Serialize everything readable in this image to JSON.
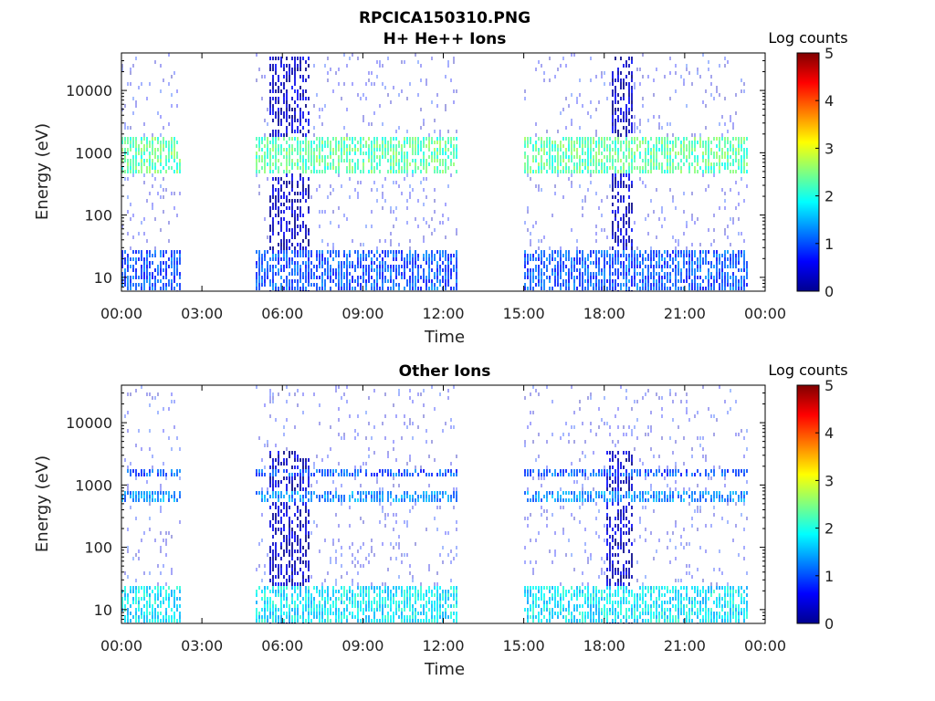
{
  "figure": {
    "title": "RPCICA150310.PNG"
  },
  "chart_data": [
    {
      "type": "heatmap",
      "title": "H+ He++ Ions",
      "xlabel": "Time",
      "ylabel": "Energy (eV)",
      "x_ticks": [
        "00:00",
        "03:00",
        "06:00",
        "09:00",
        "12:00",
        "15:00",
        "18:00",
        "21:00",
        "00:00"
      ],
      "x_range_hours": [
        0,
        24
      ],
      "y_ticks": [
        "10",
        "100",
        "1000",
        "10000"
      ],
      "y_scale": "log",
      "y_range": [
        6,
        40000
      ],
      "colorbar": {
        "label": "Log counts",
        "ticks": [
          "0",
          "1",
          "2",
          "3",
          "4",
          "5"
        ],
        "range": [
          0,
          5
        ],
        "colormap": "jet"
      },
      "data_intervals_hours": [
        [
          0,
          2.2
        ],
        [
          5.0,
          12.5
        ],
        [
          15.0,
          23.3
        ]
      ],
      "features": [
        {
          "label": "high-count bands",
          "energy_eV": [
            7,
            28
          ],
          "log_counts": 1.0
        },
        {
          "label": "~1 keV band",
          "energy_eV": [
            500,
            2000
          ],
          "log_counts": 2.3
        },
        {
          "label": "burst",
          "time_hours": [
            5.5,
            7.0
          ],
          "energy_eV": [
            6,
            40000
          ],
          "log_counts": 0.3
        },
        {
          "label": "burst",
          "time_hours": [
            18.2,
            19.0
          ],
          "energy_eV": [
            6,
            40000
          ],
          "log_counts": 0.3
        }
      ]
    },
    {
      "type": "heatmap",
      "title": "Other Ions",
      "xlabel": "Time",
      "ylabel": "Energy (eV)",
      "x_ticks": [
        "00:00",
        "03:00",
        "06:00",
        "09:00",
        "12:00",
        "15:00",
        "18:00",
        "21:00",
        "00:00"
      ],
      "x_range_hours": [
        0,
        24
      ],
      "y_ticks": [
        "10",
        "100",
        "1000",
        "10000"
      ],
      "y_scale": "log",
      "y_range": [
        6,
        40000
      ],
      "colorbar": {
        "label": "Log counts",
        "ticks": [
          "0",
          "1",
          "2",
          "3",
          "4",
          "5"
        ],
        "range": [
          0,
          5
        ],
        "colormap": "jet"
      },
      "data_intervals_hours": [
        [
          0,
          2.2
        ],
        [
          5.0,
          12.5
        ],
        [
          15.0,
          23.3
        ]
      ],
      "features": [
        {
          "label": "low-energy band",
          "energy_eV": [
            7,
            25
          ],
          "log_counts": 1.8
        },
        {
          "label": "~1.6 keV line",
          "energy_eV": [
            1400,
            1900
          ],
          "log_counts": 1.0
        },
        {
          "label": "~700 eV line",
          "energy_eV": [
            600,
            800
          ],
          "log_counts": 1.3
        },
        {
          "label": "burst",
          "time_hours": [
            5.5,
            7.0
          ],
          "energy_eV": [
            6,
            4000
          ],
          "log_counts": 0.3
        },
        {
          "label": "burst",
          "time_hours": [
            18.0,
            19.0
          ],
          "energy_eV": [
            6,
            4000
          ],
          "log_counts": 0.3
        }
      ]
    }
  ]
}
